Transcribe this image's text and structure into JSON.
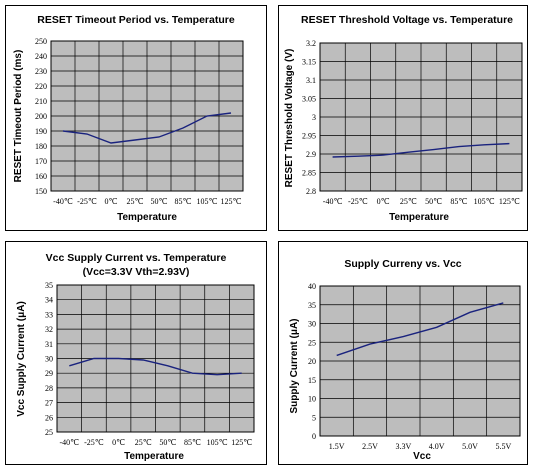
{
  "chart_data": [
    {
      "type": "line",
      "title": "RESET Timeout Period vs. Temperature",
      "subtitle": "",
      "xlabel": "Temperature",
      "ylabel": "RESET Timeout Period (ms)",
      "categories": [
        "-40℃",
        "-25℃",
        "0℃",
        "25℃",
        "50℃",
        "85℃",
        "105℃",
        "125℃"
      ],
      "ylim": [
        150,
        250
      ],
      "yticks": [
        "150",
        "160",
        "170",
        "180",
        "190",
        "200",
        "210",
        "220",
        "230",
        "240",
        "250"
      ],
      "series": [
        {
          "values": [
            190,
            188,
            182,
            184,
            186,
            192,
            200,
            202
          ]
        }
      ],
      "grid": true,
      "colors": {
        "plot_bg": "#bdbdbd",
        "line": "#1a237e"
      }
    },
    {
      "type": "line",
      "title": "RESET Threshold Voltage vs. Temperature",
      "subtitle": "",
      "xlabel": "Temperature",
      "ylabel": "RESET Threshold Voltage (V)",
      "categories": [
        "-40℃",
        "-25℃",
        "0℃",
        "25℃",
        "50℃",
        "85℃",
        "105℃",
        "125℃"
      ],
      "ylim": [
        2.8,
        3.2
      ],
      "yticks": [
        "2.8",
        "2.85",
        "2.9",
        "2.95",
        "3",
        "3.05",
        "3.1",
        "3.15",
        "3.2"
      ],
      "series": [
        {
          "values": [
            2.892,
            2.894,
            2.897,
            2.905,
            2.912,
            2.92,
            2.925,
            2.928
          ]
        }
      ],
      "grid": true,
      "colors": {
        "plot_bg": "#bdbdbd",
        "line": "#1a237e"
      }
    },
    {
      "type": "line",
      "title": "Vcc Supply Current vs. Temperature",
      "subtitle": "(Vcc=3.3V  Vth=2.93V)",
      "xlabel": "Temperature",
      "ylabel": "Vcc Supply Current (μA)",
      "categories": [
        "-40℃",
        "-25℃",
        "0℃",
        "25℃",
        "50℃",
        "85℃",
        "105℃",
        "125℃"
      ],
      "ylim": [
        25,
        35
      ],
      "yticks": [
        "25",
        "26",
        "27",
        "28",
        "29",
        "30",
        "31",
        "32",
        "33",
        "34",
        "35"
      ],
      "series": [
        {
          "values": [
            29.5,
            30.0,
            30.0,
            29.9,
            29.5,
            29.0,
            28.9,
            29.0
          ]
        }
      ],
      "grid": true,
      "colors": {
        "plot_bg": "#bdbdbd",
        "line": "#1a237e"
      }
    },
    {
      "type": "line",
      "title": "Supply Curreny vs. Vcc",
      "subtitle": "",
      "xlabel": "Vcc",
      "ylabel": "Supply Current (μA)",
      "categories": [
        "1.5V",
        "2.5V",
        "3.3V",
        "4.0V",
        "5.0V",
        "5.5V"
      ],
      "ylim": [
        0,
        40
      ],
      "yticks": [
        "0",
        "5",
        "10",
        "15",
        "20",
        "25",
        "30",
        "35",
        "40"
      ],
      "series": [
        {
          "values": [
            21.5,
            24.5,
            26.5,
            29,
            33,
            35.5
          ]
        }
      ],
      "grid": true,
      "colors": {
        "plot_bg": "#bdbdbd",
        "line": "#1a237e"
      }
    }
  ]
}
